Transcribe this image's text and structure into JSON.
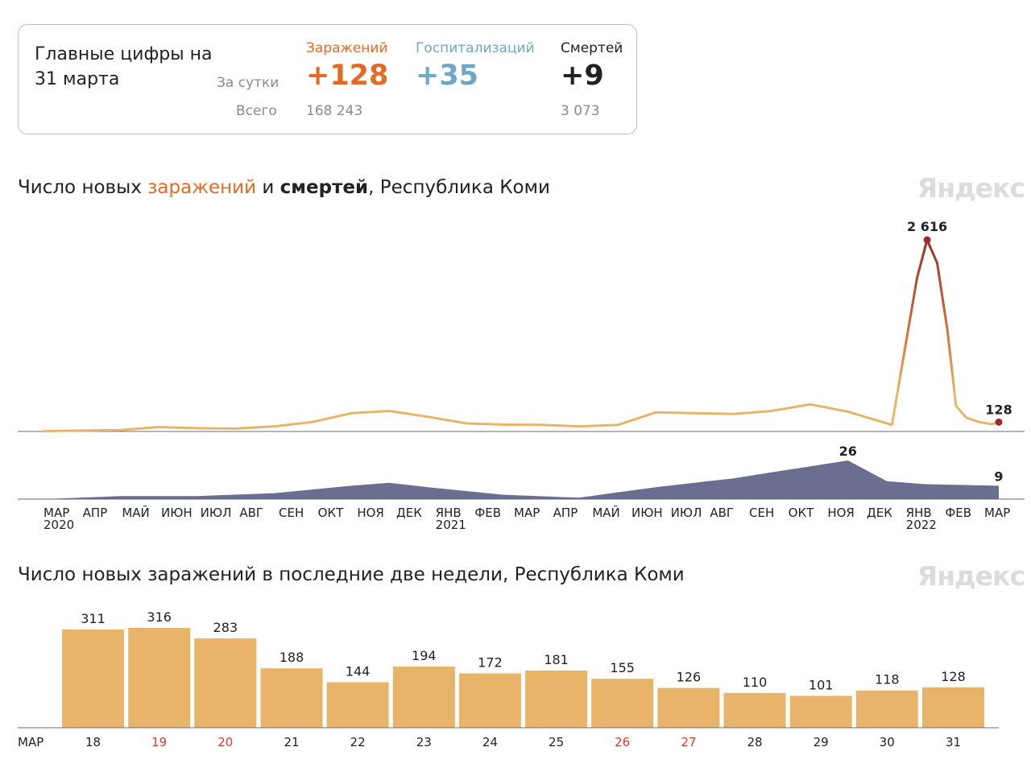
{
  "summary": {
    "title": "Главные цифры на 31 марта",
    "per_day_label": "За сутки",
    "total_label": "Всего",
    "columns": [
      {
        "label": "Заражений",
        "day": "+128",
        "total": "168 243",
        "color": "#e66a24"
      },
      {
        "label": "Госпитализаций",
        "day": "+35",
        "total": "",
        "color": "#6ea7c8"
      },
      {
        "label": "Смертей",
        "day": "+9",
        "total": "3 073",
        "color": "#222222"
      }
    ]
  },
  "watermark": "Яндекс",
  "chart1": {
    "title_pre": "Число новых ",
    "title_infections": "заражений",
    "title_mid": " и ",
    "title_deaths": "смертей",
    "title_post": ", Республика Коми",
    "peak_label": "2 616",
    "last_label": "128",
    "deaths_peak_label": "26",
    "deaths_last_label": "9",
    "months": [
      "МАР",
      "АПР",
      "МАЙ",
      "ИЮН",
      "ИЮЛ",
      "АВГ",
      "СЕН",
      "ОКТ",
      "НОЯ",
      "ДЕК",
      "ЯНВ",
      "ФЕВ",
      "МАР",
      "АПР",
      "МАЙ",
      "ИЮН",
      "ИЮЛ",
      "АВГ",
      "СЕН",
      "ОКТ",
      "НОЯ",
      "ДЕК",
      "ЯНВ",
      "ФЕВ",
      "МАР"
    ],
    "years": [
      {
        "label": "2020",
        "month_index": 0
      },
      {
        "label": "2021",
        "month_index": 10
      },
      {
        "label": "2022",
        "month_index": 22
      }
    ],
    "colors": {
      "infections": "#e8b46a",
      "peak": "#9e2a2a",
      "deaths": "#5a5f86"
    }
  },
  "chart_data": [
    {
      "type": "area",
      "title": "Число новых заражений и смертей, Республика Коми",
      "x_range": [
        "2020-03",
        "2022-03-31"
      ],
      "series": [
        {
          "name": "заражений",
          "x": [
            "2020-03",
            "2020-05",
            "2020-06",
            "2020-07",
            "2020-08",
            "2020-09",
            "2020-10",
            "2020-11",
            "2020-12",
            "2021-01",
            "2021-02",
            "2021-03",
            "2021-04",
            "2021-05",
            "2021-06",
            "2021-07",
            "2021-08",
            "2021-09",
            "2021-10",
            "2021-11",
            "2021-12",
            "2022-01-05",
            "2022-01-15",
            "2022-01-25",
            "2022-02-02",
            "2022-02-10",
            "2022-02-18",
            "2022-02-25",
            "2022-03-05",
            "2022-03-15",
            "2022-03-25",
            "2022-03-31"
          ],
          "values": [
            5,
            20,
            60,
            45,
            40,
            70,
            130,
            250,
            280,
            200,
            110,
            95,
            90,
            70,
            90,
            260,
            250,
            240,
            280,
            370,
            270,
            90,
            1100,
            2100,
            2616,
            2300,
            1400,
            350,
            190,
            130,
            100,
            128
          ]
        },
        {
          "name": "смертей",
          "x": [
            "2020-03",
            "2020-05",
            "2020-07",
            "2020-09",
            "2020-11",
            "2020-12",
            "2021-01",
            "2021-03",
            "2021-05",
            "2021-07",
            "2021-09",
            "2021-10",
            "2021-11",
            "2021-12",
            "2022-01",
            "2022-02",
            "2022-03-31"
          ],
          "values": [
            0,
            2,
            2,
            4,
            9,
            11,
            8,
            3,
            1,
            8,
            14,
            18,
            22,
            26,
            12,
            10,
            9
          ]
        }
      ]
    },
    {
      "type": "bar",
      "title": "Число новых заражений в последние две недели, Республика Коми",
      "xlabel": "МАР",
      "categories": [
        "18",
        "19",
        "20",
        "21",
        "22",
        "23",
        "24",
        "25",
        "26",
        "27",
        "28",
        "29",
        "30",
        "31"
      ],
      "values": [
        311,
        316,
        283,
        188,
        144,
        194,
        172,
        181,
        155,
        126,
        110,
        101,
        118,
        128
      ],
      "weekend": [
        false,
        true,
        true,
        false,
        false,
        false,
        false,
        false,
        true,
        true,
        false,
        false,
        false,
        false
      ],
      "ylim": [
        0,
        330
      ]
    }
  ],
  "chart2": {
    "title": "Число новых заражений в последние две недели, Республика Коми",
    "month_label": "МАР",
    "bar_color": "#e8b46a",
    "weekend_color": "#d33b2c"
  }
}
